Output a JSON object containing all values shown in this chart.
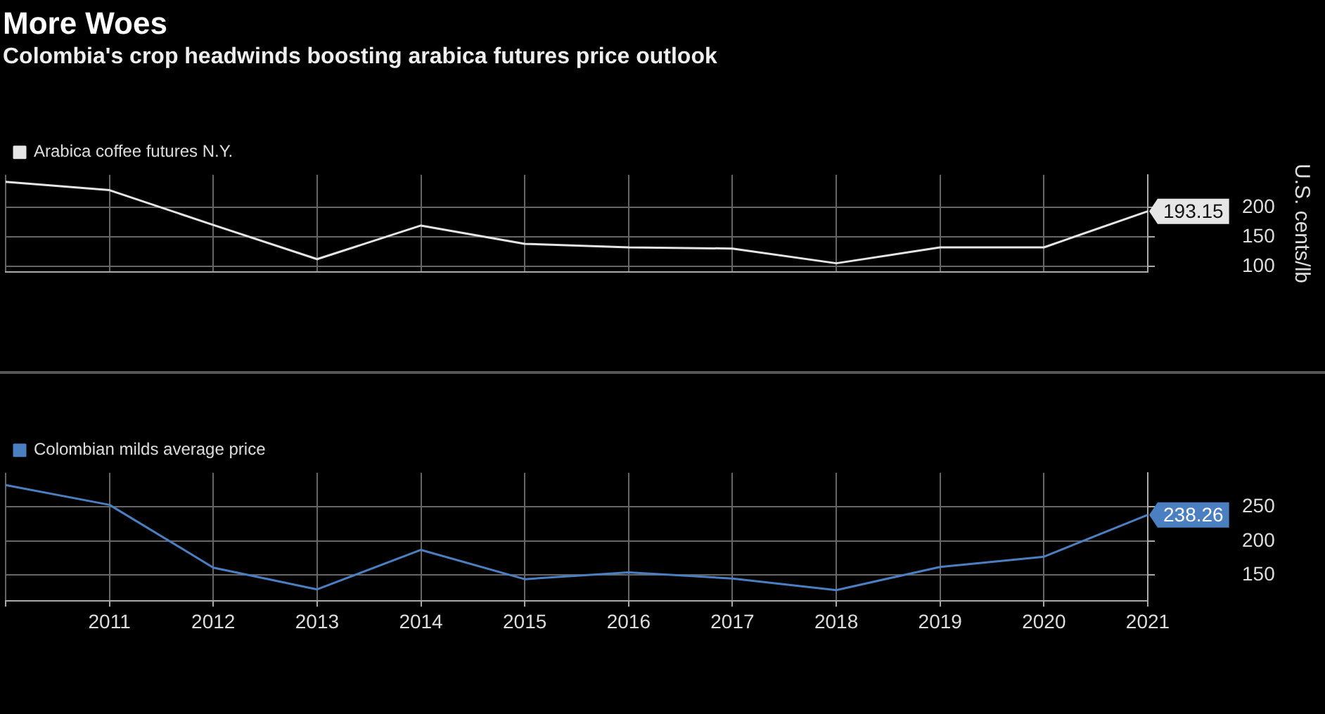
{
  "chart_data": [
    {
      "type": "line",
      "title": "More Woes",
      "subtitle": "Colombia's crop headwinds boosting arabica futures price outlook",
      "ylabel": "U.S. cents/lb",
      "categories": [
        null,
        "2011",
        "2012",
        "2013",
        "2014",
        "2015",
        "2016",
        "2017",
        "2018",
        "2019",
        "2020",
        "2021"
      ],
      "series": [
        {
          "name": "Arabica coffee futures N.Y.",
          "color": "#e6e6e6",
          "values": [
            243,
            229,
            170,
            112,
            169,
            138,
            132,
            130,
            105,
            132,
            132,
            193.15
          ],
          "value_labels": [
            null,
            null,
            null,
            null,
            null,
            null,
            null,
            null,
            null,
            null,
            null,
            "193.15"
          ]
        }
      ],
      "ylim": [
        90,
        255
      ],
      "yticks": [
        100,
        150,
        200
      ],
      "grid": true,
      "legend": "top left",
      "tick_labels": "y",
      "marker": "none",
      "line_style": "solid"
    },
    {
      "type": "line",
      "categories": [
        null,
        "2011",
        "2012",
        "2013",
        "2014",
        "2015",
        "2016",
        "2017",
        "2018",
        "2019",
        "2020",
        "2021"
      ],
      "series": [
        {
          "name": "Colombian milds average price",
          "color": "#4a7fc1",
          "values": [
            282,
            253,
            161,
            129,
            187,
            144,
            154,
            145,
            128,
            162,
            177,
            238.26
          ],
          "value_labels": [
            null,
            null,
            null,
            null,
            null,
            null,
            null,
            null,
            null,
            null,
            null,
            "238.26"
          ]
        }
      ],
      "ylim": [
        112,
        300
      ],
      "yticks": [
        150,
        200,
        250
      ],
      "grid": true,
      "legend": "top left",
      "marker": "none",
      "line_style": "solid"
    }
  ]
}
